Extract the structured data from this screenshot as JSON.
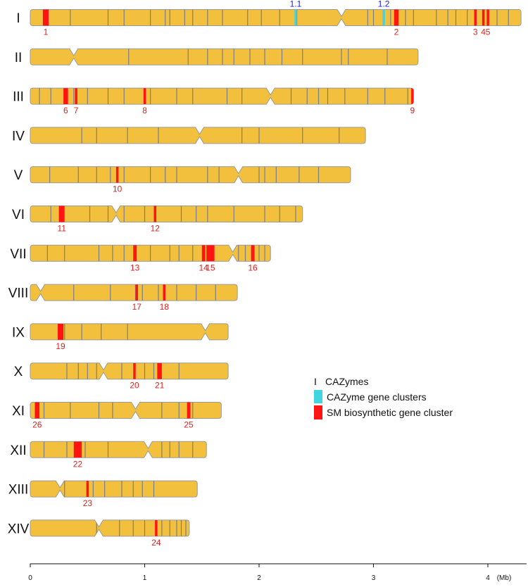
{
  "colors": {
    "chromosome_fill": "#f2c03d",
    "chromosome_outline": "#9a9a9a",
    "cazyme_mark": "#7a7f86",
    "cazyme_cluster": "#3fd6e0",
    "cazyme_cluster_label": "#1a1aee",
    "sm_cluster": "#ff1414",
    "sm_cluster_label": "#e01e1e",
    "text": "#111111"
  },
  "chart_data": {
    "type": "chromosome_map",
    "axis": {
      "min": 0,
      "max": 4.3,
      "ticks": [
        0,
        1,
        2,
        3,
        4
      ],
      "unit_label": "(Mb)"
    },
    "legend": [
      {
        "key": "cazyme",
        "glyph": "I",
        "label": "CAZymes"
      },
      {
        "key": "cazyme_cluster",
        "label": "CAZyme gene clusters"
      },
      {
        "key": "sm_cluster",
        "label": "SM biosynthetic gene cluster"
      }
    ],
    "chromosomes": [
      {
        "name": "I",
        "length": 4.29,
        "centromere": 2.72,
        "cazymes": [
          0.35,
          0.68,
          0.82,
          1.05,
          1.18,
          1.22,
          1.35,
          1.42,
          1.55,
          1.68,
          1.9,
          2.02,
          2.18,
          2.33,
          2.95,
          3.0,
          3.15,
          3.28,
          3.35,
          3.55,
          3.65,
          3.72,
          3.82,
          4.0,
          4.08,
          4.18
        ],
        "cazyme_clusters": [
          {
            "label": "1.1",
            "start": 2.31,
            "end": 2.33
          },
          {
            "label": "1.2",
            "start": 3.08,
            "end": 3.1
          }
        ],
        "sm_clusters": [
          {
            "label": "1",
            "start": 0.11,
            "end": 0.16
          },
          {
            "label": "2",
            "start": 3.18,
            "end": 3.22
          },
          {
            "label": "3",
            "start": 3.88,
            "end": 3.9
          },
          {
            "label": "4",
            "start": 3.95,
            "end": 3.97
          },
          {
            "label": "5",
            "start": 3.99,
            "end": 4.01
          }
        ]
      },
      {
        "name": "II",
        "length": 3.39,
        "centromere": 0.38,
        "cazymes": [
          0.86,
          1.38,
          1.55,
          1.68,
          1.78,
          1.92,
          2.05,
          2.2,
          2.38,
          2.72,
          2.78,
          3.12
        ],
        "cazyme_clusters": [],
        "sm_clusters": []
      },
      {
        "name": "III",
        "length": 3.35,
        "centromere": 2.1,
        "cazymes": [
          0.08,
          0.18,
          0.38,
          0.5,
          0.68,
          0.82,
          1.05,
          1.28,
          1.42,
          1.72,
          1.85,
          2.28,
          2.42,
          2.52,
          2.6,
          2.75,
          2.95,
          3.1,
          3.3
        ],
        "cazyme_clusters": [],
        "sm_clusters": [
          {
            "label": "6",
            "start": 0.29,
            "end": 0.33
          },
          {
            "label": "7",
            "start": 0.39,
            "end": 0.41
          },
          {
            "label": "8",
            "start": 0.99,
            "end": 1.01
          },
          {
            "label": "9",
            "start": 3.33,
            "end": 3.35
          }
        ]
      },
      {
        "name": "IV",
        "length": 2.93,
        "centromere": 1.48,
        "cazymes": [
          0.45,
          0.58,
          0.85,
          1.12,
          1.85,
          2.0,
          2.38,
          2.7
        ],
        "cazyme_clusters": [],
        "sm_clusters": []
      },
      {
        "name": "V",
        "length": 2.8,
        "centromere": 1.82,
        "cazymes": [
          0.17,
          0.42,
          0.58,
          0.7,
          0.82,
          1.05,
          1.18,
          1.28,
          1.55,
          1.65,
          2.0,
          2.05,
          2.15,
          2.35,
          2.52
        ],
        "cazyme_clusters": [],
        "sm_clusters": [
          {
            "label": "10",
            "start": 0.75,
            "end": 0.77
          }
        ]
      },
      {
        "name": "VI",
        "length": 2.38,
        "centromere": 0.75,
        "cazymes": [
          0.18,
          0.52,
          0.68,
          0.82,
          1.0,
          1.32,
          1.45,
          1.55,
          1.78,
          2.05,
          2.18,
          2.32
        ],
        "cazyme_clusters": [],
        "sm_clusters": [
          {
            "label": "11",
            "start": 0.25,
            "end": 0.3
          },
          {
            "label": "12",
            "start": 1.08,
            "end": 1.1
          }
        ]
      },
      {
        "name": "VII",
        "length": 2.1,
        "centromere": 1.77,
        "cazymes": [
          0.15,
          0.3,
          0.6,
          0.72,
          0.82,
          1.05,
          1.22,
          1.3,
          1.42,
          1.82,
          1.88,
          2.0,
          2.05
        ],
        "cazyme_clusters": [],
        "sm_clusters": [
          {
            "label": "13",
            "start": 0.9,
            "end": 0.93
          },
          {
            "label": "14",
            "start": 1.5,
            "end": 1.53
          },
          {
            "label": "15",
            "start": 1.54,
            "end": 1.61
          },
          {
            "label": "16",
            "start": 1.93,
            "end": 1.96
          }
        ]
      },
      {
        "name": "VIII",
        "length": 1.81,
        "centromere": 0.09,
        "cazymes": [
          0.38,
          0.7,
          0.92,
          0.98,
          1.12,
          1.28,
          1.45,
          1.62
        ],
        "cazyme_clusters": [],
        "sm_clusters": [
          {
            "label": "17",
            "start": 0.92,
            "end": 0.94
          },
          {
            "label": "18",
            "start": 1.16,
            "end": 1.18
          }
        ]
      },
      {
        "name": "IX",
        "length": 1.73,
        "centromere": 1.53,
        "cazymes": [
          0.3,
          0.45,
          0.62,
          0.85
        ],
        "cazyme_clusters": [],
        "sm_clusters": [
          {
            "label": "19",
            "start": 0.24,
            "end": 0.29
          }
        ]
      },
      {
        "name": "X",
        "length": 1.73,
        "centromere": 0.64,
        "cazymes": [
          0.32,
          0.42,
          0.5,
          0.58,
          0.8,
          1.0,
          1.08,
          1.3
        ],
        "cazyme_clusters": [],
        "sm_clusters": [
          {
            "label": "20",
            "start": 0.9,
            "end": 0.92
          },
          {
            "label": "21",
            "start": 1.11,
            "end": 1.15
          }
        ]
      },
      {
        "name": "XI",
        "length": 1.67,
        "centromere": 0.92,
        "cazymes": [
          0.12,
          0.35,
          0.6,
          0.72,
          1.15,
          1.3,
          1.42
        ],
        "cazyme_clusters": [],
        "sm_clusters": [
          {
            "label": "26",
            "start": 0.04,
            "end": 0.08
          },
          {
            "label": "25",
            "start": 1.37,
            "end": 1.4
          }
        ]
      },
      {
        "name": "XII",
        "length": 1.54,
        "centromere": 1.03,
        "cazymes": [
          0.12,
          0.32,
          0.48,
          0.68,
          1.15,
          1.22,
          1.3,
          1.42
        ],
        "cazyme_clusters": [],
        "sm_clusters": [
          {
            "label": "22",
            "start": 0.38,
            "end": 0.45
          }
        ]
      },
      {
        "name": "XIII",
        "length": 1.46,
        "centromere": 0.26,
        "cazymes": [
          0.3,
          0.55,
          0.65,
          0.8,
          0.9,
          0.98,
          1.08
        ],
        "cazyme_clusters": [],
        "sm_clusters": [
          {
            "label": "23",
            "start": 0.49,
            "end": 0.51
          }
        ]
      },
      {
        "name": "XIV",
        "length": 1.39,
        "centromere": 0.6,
        "cazymes": [
          0.58,
          0.78,
          0.9,
          1.0,
          1.15,
          1.22,
          1.28,
          1.32,
          1.36
        ],
        "cazyme_clusters": [],
        "sm_clusters": [
          {
            "label": "24",
            "start": 1.09,
            "end": 1.11
          }
        ]
      }
    ]
  }
}
